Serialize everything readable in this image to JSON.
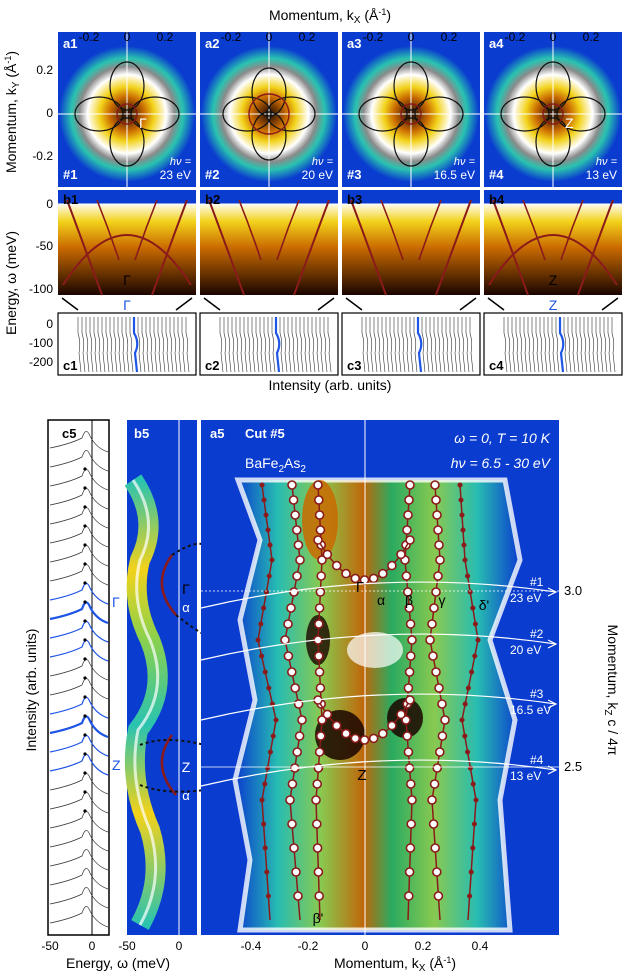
{
  "top": {
    "x_title": "Momentum, k",
    "x_sub": "X",
    "x_unit": " (Å",
    "x_sup": "-1",
    "x_close": ")",
    "x_ticks": [
      "-0.2",
      "0",
      "0.2"
    ],
    "ky_title": "Momentum, k",
    "ky_sub": "Y",
    "ky_unit": " (Å",
    "ky_sup": "-1",
    "ky_close": ")",
    "ky_ticks": [
      "0.2",
      "0",
      "-0.2"
    ],
    "panels": [
      {
        "label": "a1",
        "cut": "#1",
        "hv_label": "hν =",
        "hv": "23 eV",
        "center": "Γ"
      },
      {
        "label": "a2",
        "cut": "#2",
        "hv_label": "hν =",
        "hv": "20 eV",
        "center": ""
      },
      {
        "label": "a3",
        "cut": "#3",
        "hv_label": "hν =",
        "hv": "16.5 eV",
        "center": ""
      },
      {
        "label": "a4",
        "cut": "#4",
        "hv_label": "hν =",
        "hv": "13 eV",
        "center": "Z"
      }
    ]
  },
  "middle": {
    "energy_title": "Energy, ω (meV)",
    "b_ticks": [
      "0",
      "-50",
      "-100"
    ],
    "c_ticks": [
      "0",
      "-100",
      "-200"
    ],
    "b_labels": [
      "b1",
      "b2",
      "b3",
      "b4"
    ],
    "b_center": [
      "Γ",
      "",
      "",
      "Z"
    ],
    "c_labels": [
      "c1",
      "c2",
      "c3",
      "c4"
    ],
    "c_center": [
      "Γ",
      "",
      "",
      "Z"
    ],
    "intensity_title": "Intensity (arb. units)"
  },
  "bottom": {
    "c5": {
      "label": "c5",
      "ylabel": "Intensity (arb. units)",
      "gamma": "Γ",
      "z": "Z",
      "xticks": [
        "-50",
        "0"
      ]
    },
    "b5": {
      "label": "b5",
      "gamma": "Γ",
      "alpha1": "α",
      "z": "Z",
      "alpha2": "α",
      "xticks": [
        "-50",
        "0"
      ]
    },
    "energy_xlabel": "Energy, ω (meV)",
    "a5": {
      "label": "a5",
      "cut": "Cut #5",
      "material": "BaFe",
      "material_sub1": "2",
      "material_mid": "As",
      "material_sub2": "2",
      "condition1": "ω = 0,  T = 10 K",
      "condition2": "hν = 6.5 - 30 eV",
      "point_gamma": "Γ",
      "point_z": "Z",
      "bands": [
        "α",
        "β",
        "γ",
        "δ'"
      ],
      "bottom_label": "β'",
      "xticks": [
        "-0.4",
        "-0.2",
        "0",
        "0.2",
        "0.4"
      ],
      "xlabel": "Momentum, k",
      "xlabel_sub": "X",
      "xlabel_unit": " (Å",
      "xlabel_sup": "-1",
      "xlabel_close": ")",
      "ylabel": "Momentum, k",
      "ylabel_sub": "Z",
      "ylabel_tail": " c / 4π",
      "right_ticks": [
        "3.0",
        "2.5"
      ],
      "cuts": [
        {
          "name": "#1",
          "hv": "23 eV"
        },
        {
          "name": "#2",
          "hv": "20 eV"
        },
        {
          "name": "#3",
          "hv": "16.5 eV"
        },
        {
          "name": "#4",
          "hv": "13 eV"
        }
      ]
    }
  },
  "colors": {
    "band": "#8b1a1a",
    "highlight": "#1f55e6",
    "axis": "#000000",
    "map_bg": "#0a3ccf"
  }
}
